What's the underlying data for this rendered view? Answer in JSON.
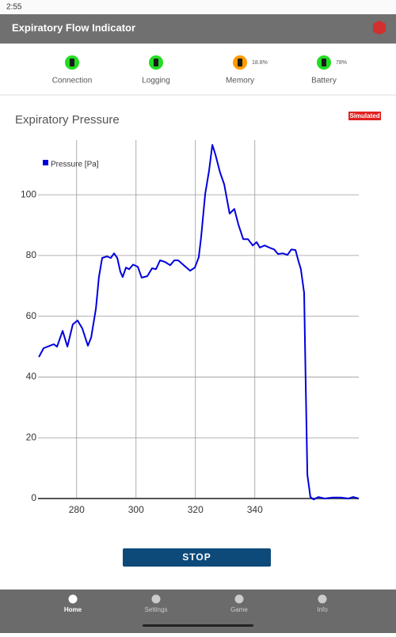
{
  "status_bar": {
    "time": "2:55"
  },
  "app_bar": {
    "title": "Expiratory Flow Indicator"
  },
  "indicators": [
    {
      "label": "Connection"
    },
    {
      "label": "Logging"
    },
    {
      "label": "Memory",
      "value": "18.8%"
    },
    {
      "label": "Battery",
      "value": "78%"
    }
  ],
  "chart_title": "Expiratory Pressure",
  "badge": "Simulated",
  "chart_data": {
    "type": "line",
    "x": [
      267.3,
      268.9,
      271,
      272.3,
      273.4,
      275.3,
      276.9,
      278.7,
      280.3,
      281.9,
      283.8,
      284.9,
      286.5,
      287.5,
      288.6,
      290.2,
      291.5,
      292.6,
      293.7,
      294.7,
      295.5,
      296.6,
      297.7,
      299,
      300.6,
      301.9,
      303.8,
      305.4,
      306.7,
      308.1,
      309.7,
      311.5,
      312.9,
      314.2,
      316.1,
      318.2,
      319.8,
      321.1,
      321.9,
      323.3,
      324.6,
      325.7,
      326.7,
      328.3,
      329.7,
      331.5,
      333.1,
      334.5,
      336.1,
      337.7,
      339.3,
      340.6,
      341.7,
      343.3,
      344.9,
      346.5,
      347.8,
      349.4,
      351,
      352.3,
      353.7,
      354.7,
      355.5,
      356.6,
      357.1,
      357.7,
      358.7,
      359.8,
      361.4,
      363.5,
      366.2,
      368.9,
      371.5,
      373.1,
      375
    ],
    "series": [
      {
        "name": "Pressure [Pa]",
        "color": "#0000dd",
        "values": [
          46.6,
          49.5,
          50.3,
          50.8,
          50,
          55.2,
          50,
          57.3,
          58.6,
          56,
          50.3,
          53,
          62.5,
          72.9,
          79.2,
          79.7,
          79.2,
          80.7,
          79.2,
          74.7,
          72.9,
          76,
          75.5,
          77,
          76.3,
          72.7,
          73.2,
          75.8,
          75.5,
          78.4,
          77.9,
          76.8,
          78.4,
          78.4,
          76.8,
          75,
          76,
          79.4,
          85.9,
          100.3,
          108,
          116.4,
          113.3,
          107.3,
          103.4,
          93.8,
          95.3,
          90.1,
          85.4,
          85.4,
          83.3,
          84.4,
          82.6,
          83.3,
          82.6,
          82,
          80.5,
          80.7,
          80.2,
          82,
          81.8,
          78.1,
          75.5,
          67.7,
          39,
          7.8,
          0.5,
          -0.3,
          0.5,
          0,
          0.3,
          0.3,
          0,
          0.5,
          0
        ]
      }
    ],
    "xlim": [
      267,
      375
    ],
    "xticks": [
      280,
      300,
      320,
      340
    ],
    "ylim": [
      0,
      118
    ],
    "yticks": [
      0,
      20,
      40,
      60,
      80,
      100
    ],
    "grid": true,
    "legend": "top-left"
  },
  "button": "STOP",
  "nav": [
    {
      "label": "Home"
    },
    {
      "label": "Settings"
    },
    {
      "label": "Game"
    },
    {
      "label": "Info"
    }
  ]
}
